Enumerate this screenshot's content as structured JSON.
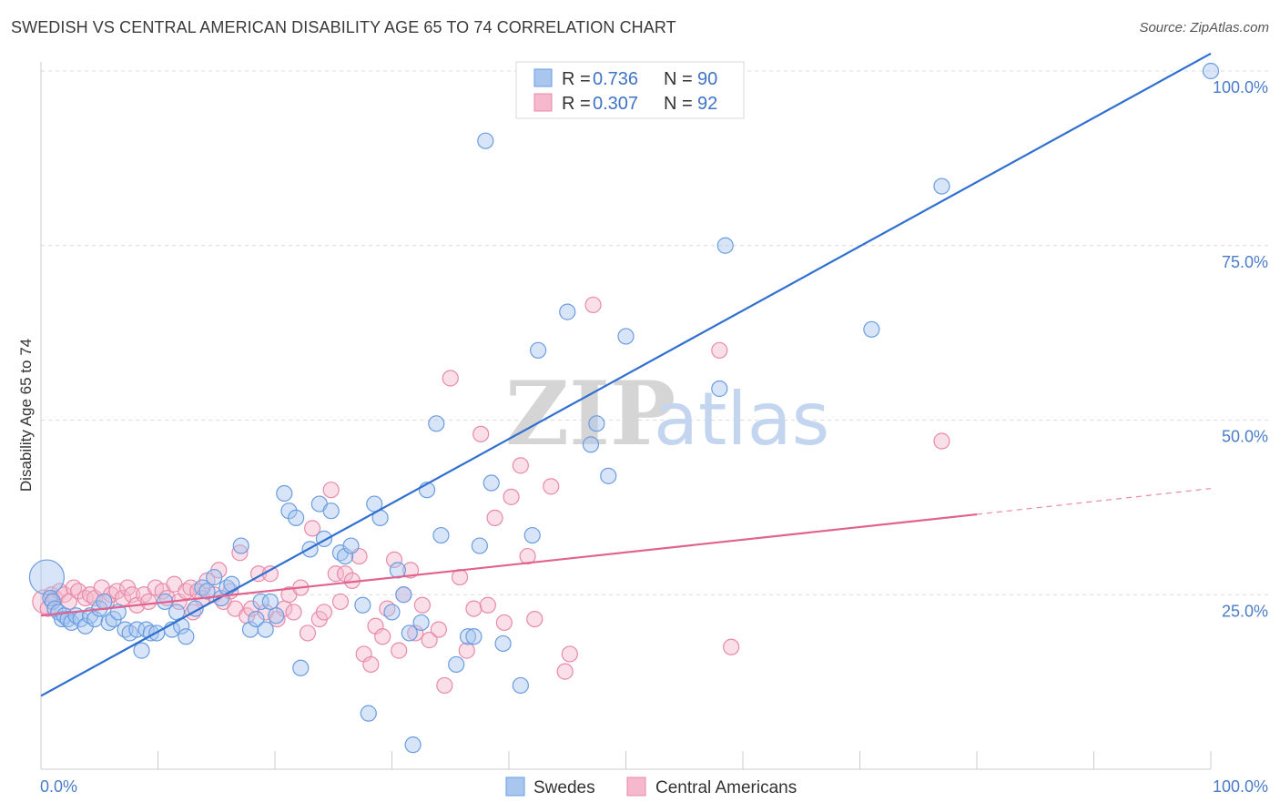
{
  "header": {
    "title": "SWEDISH VS CENTRAL AMERICAN DISABILITY AGE 65 TO 74 CORRELATION CHART",
    "source": "Source: ZipAtlas.com"
  },
  "watermark": {
    "zip": "ZIP",
    "atlas": "atlas"
  },
  "legend_top": {
    "rows": [
      {
        "r_label": "R = ",
        "r_value": "0.736",
        "n_label": "N = ",
        "n_value": "90",
        "color": "#a9c6ef"
      },
      {
        "r_label": "R = ",
        "r_value": "0.307",
        "n_label": "N = ",
        "n_value": "92",
        "color": "#f5b8cc"
      }
    ]
  },
  "legend_bottom": [
    {
      "label": "Swedes",
      "color": "#a9c6ef"
    },
    {
      "label": "Central Americans",
      "color": "#f5b8cc"
    }
  ],
  "chart_data": {
    "type": "scatter",
    "ylabel": "Disability Age 65 to 74",
    "xlim": [
      0,
      100
    ],
    "ylim": [
      0,
      100
    ],
    "x_tick_labels": [
      "0.0%",
      "100.0%"
    ],
    "y_tick_labels": [
      "25.0%",
      "50.0%",
      "75.0%",
      "100.0%"
    ],
    "y_ticks": [
      25,
      50,
      75,
      100
    ],
    "grid": true,
    "series": [
      {
        "name": "Swedes",
        "color": "#6a9de0",
        "fill": "#a9c6ef",
        "trend": {
          "x0": 0,
          "y0": 10.5,
          "x1": 100,
          "y1": 102.5,
          "dashed_from": null
        },
        "points": [
          [
            0.5,
            27.5
          ],
          [
            0.8,
            24.5
          ],
          [
            1.0,
            24
          ],
          [
            1.2,
            23
          ],
          [
            1.5,
            22.5
          ],
          [
            1.8,
            21.5
          ],
          [
            2.0,
            22
          ],
          [
            2.3,
            21.5
          ],
          [
            2.6,
            21
          ],
          [
            3,
            22
          ],
          [
            3.4,
            21.5
          ],
          [
            3.8,
            20.5
          ],
          [
            4.2,
            22
          ],
          [
            4.6,
            21.5
          ],
          [
            5,
            23
          ],
          [
            5.4,
            24
          ],
          [
            5.8,
            21
          ],
          [
            6.2,
            21.5
          ],
          [
            6.6,
            22.5
          ],
          [
            7.2,
            20
          ],
          [
            7.6,
            19.5
          ],
          [
            8.2,
            20
          ],
          [
            8.6,
            17
          ],
          [
            9.0,
            20
          ],
          [
            9.4,
            19.5
          ],
          [
            9.9,
            19.5
          ],
          [
            10.6,
            24
          ],
          [
            11.2,
            20
          ],
          [
            11.6,
            22.5
          ],
          [
            12.0,
            20.5
          ],
          [
            12.4,
            19
          ],
          [
            13.2,
            23
          ],
          [
            13.8,
            26
          ],
          [
            14.2,
            25.5
          ],
          [
            14.8,
            27.5
          ],
          [
            15.4,
            24.5
          ],
          [
            15.9,
            26
          ],
          [
            16.3,
            26.5
          ],
          [
            17.1,
            32
          ],
          [
            17.9,
            20
          ],
          [
            18.4,
            21.5
          ],
          [
            18.8,
            24
          ],
          [
            19.2,
            20
          ],
          [
            19.6,
            24
          ],
          [
            20.1,
            22
          ],
          [
            20.8,
            39.5
          ],
          [
            21.2,
            37
          ],
          [
            21.8,
            36
          ],
          [
            22.2,
            14.5
          ],
          [
            23.0,
            31.5
          ],
          [
            23.8,
            38
          ],
          [
            24.2,
            33
          ],
          [
            24.8,
            37
          ],
          [
            25.6,
            31
          ],
          [
            26.0,
            30.5
          ],
          [
            26.5,
            32
          ],
          [
            27.5,
            23.5
          ],
          [
            28.0,
            8
          ],
          [
            28.5,
            38
          ],
          [
            29.0,
            36
          ],
          [
            30.0,
            22.5
          ],
          [
            30.5,
            28.5
          ],
          [
            31.0,
            25
          ],
          [
            31.5,
            19.5
          ],
          [
            31.8,
            3.5
          ],
          [
            32.5,
            21
          ],
          [
            33.0,
            40
          ],
          [
            33.8,
            49.5
          ],
          [
            34.2,
            33.5
          ],
          [
            35.5,
            15
          ],
          [
            36.5,
            19
          ],
          [
            37.0,
            19
          ],
          [
            37.5,
            32
          ],
          [
            38,
            90
          ],
          [
            38.5,
            41
          ],
          [
            39.5,
            18
          ],
          [
            41.0,
            12
          ],
          [
            42,
            33.5
          ],
          [
            42.5,
            60
          ],
          [
            45,
            65.5
          ],
          [
            47.0,
            46.5
          ],
          [
            47.5,
            49.5
          ],
          [
            48.5,
            42
          ],
          [
            50.0,
            62
          ],
          [
            51,
            100
          ],
          [
            58,
            54.5
          ],
          [
            58.5,
            75
          ],
          [
            71.0,
            63
          ],
          [
            77.0,
            83.5
          ],
          [
            100,
            100
          ]
        ],
        "sizes_note": "one large point near x=0.5,y=27.5"
      },
      {
        "name": "Central Americans",
        "color": "#e88aa9",
        "fill": "#f5b8cc",
        "trend": {
          "x0": 0,
          "y0": 22,
          "x1": 80,
          "y1": 36.5,
          "dashed_to": 100,
          "dashed_y": 40.2
        },
        "points": [
          [
            0.3,
            24
          ],
          [
            0.6,
            23
          ],
          [
            0.9,
            25
          ],
          [
            1.2,
            24.5
          ],
          [
            1.6,
            25.5
          ],
          [
            2.0,
            25
          ],
          [
            2.4,
            24
          ],
          [
            2.8,
            26
          ],
          [
            3.2,
            25.5
          ],
          [
            3.8,
            24.5
          ],
          [
            4.2,
            25
          ],
          [
            4.6,
            24.5
          ],
          [
            5.2,
            26
          ],
          [
            5.6,
            24
          ],
          [
            6.0,
            25
          ],
          [
            6.5,
            25.5
          ],
          [
            7.0,
            24.5
          ],
          [
            7.4,
            26
          ],
          [
            7.8,
            25
          ],
          [
            8.2,
            23.5
          ],
          [
            8.8,
            25
          ],
          [
            9.2,
            24
          ],
          [
            9.8,
            26
          ],
          [
            10.4,
            25.5
          ],
          [
            10.8,
            24.5
          ],
          [
            11.4,
            26.5
          ],
          [
            11.8,
            24
          ],
          [
            12.4,
            25.5
          ],
          [
            12.8,
            26
          ],
          [
            13.4,
            25.5
          ],
          [
            13.8,
            24.5
          ],
          [
            14.2,
            27
          ],
          [
            14.8,
            25
          ],
          [
            15.2,
            28.5
          ],
          [
            15.6,
            24
          ],
          [
            16.2,
            25.5
          ],
          [
            16.6,
            23
          ],
          [
            17.0,
            31
          ],
          [
            17.6,
            22
          ],
          [
            18.0,
            23
          ],
          [
            18.6,
            28
          ],
          [
            19.2,
            22.5
          ],
          [
            19.6,
            28
          ],
          [
            20.2,
            21.5
          ],
          [
            20.8,
            23
          ],
          [
            21.2,
            25
          ],
          [
            21.6,
            22.5
          ],
          [
            22.2,
            26
          ],
          [
            22.8,
            19.5
          ],
          [
            23.2,
            34.5
          ],
          [
            23.8,
            21.5
          ],
          [
            24.2,
            22.5
          ],
          [
            24.8,
            40
          ],
          [
            25.2,
            28
          ],
          [
            25.6,
            24
          ],
          [
            26.0,
            28
          ],
          [
            26.6,
            27
          ],
          [
            27.2,
            30.5
          ],
          [
            27.6,
            16.5
          ],
          [
            28.2,
            15
          ],
          [
            28.6,
            20.5
          ],
          [
            29.2,
            19
          ],
          [
            29.6,
            23
          ],
          [
            30.2,
            30
          ],
          [
            30.6,
            17
          ],
          [
            31.0,
            25
          ],
          [
            31.6,
            28.5
          ],
          [
            32.0,
            19.5
          ],
          [
            32.6,
            23.5
          ],
          [
            33.2,
            18.5
          ],
          [
            34.0,
            20
          ],
          [
            34.5,
            12
          ],
          [
            35.0,
            56
          ],
          [
            35.8,
            27.5
          ],
          [
            36.4,
            17
          ],
          [
            37.0,
            23
          ],
          [
            37.6,
            48
          ],
          [
            38.2,
            23.5
          ],
          [
            38.8,
            36
          ],
          [
            39.6,
            21
          ],
          [
            40.2,
            39
          ],
          [
            41.0,
            43.5
          ],
          [
            41.6,
            30.5
          ],
          [
            42.2,
            21.5
          ],
          [
            43.6,
            40.5
          ],
          [
            44.8,
            14
          ],
          [
            45.2,
            16.5
          ],
          [
            47.2,
            66.5
          ],
          [
            58.0,
            60
          ],
          [
            59.0,
            17.5
          ],
          [
            77.0,
            47
          ],
          [
            13.0,
            22.5
          ]
        ]
      }
    ]
  }
}
